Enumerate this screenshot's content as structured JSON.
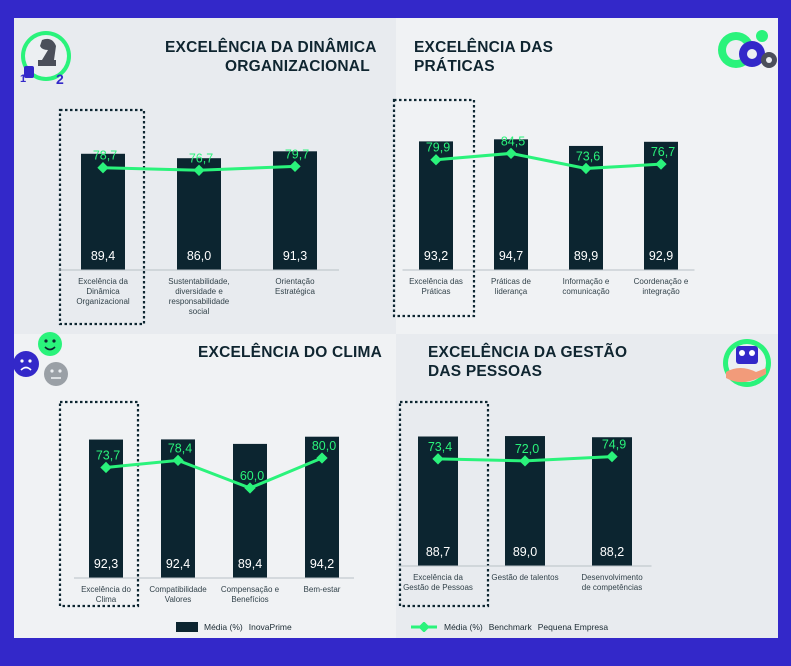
{
  "colors": {
    "frame": "#3328c9",
    "bar": "#0c2530",
    "benchmark": "#2af37b",
    "background": "#eceff2"
  },
  "legend": {
    "bar_label": "Média (%)",
    "bar_name": "InovaPrime",
    "line_label": "Média (%)",
    "line_name": "Benchmark",
    "line_name2": "Pequena Empresa"
  },
  "panels": [
    {
      "title_line1": "EXCELÊNCIA DA DINÂMICA",
      "title_line2": "ORGANIZACIONAL",
      "icon": "chess-knight-icon"
    },
    {
      "title_line1": "EXCELÊNCIA DAS",
      "title_line2": "PRÁTICAS",
      "icon": "gears-icon"
    },
    {
      "title_line1": "EXCELÊNCIA DO CLIMA",
      "title_line2": "",
      "icon": "mood-faces-icon"
    },
    {
      "title_line1": "EXCELÊNCIA DA GESTÃO",
      "title_line2": "DAS PESSOAS",
      "icon": "hand-people-icon"
    }
  ],
  "chart_data": [
    {
      "type": "bar",
      "title": "EXCELÊNCIA DA DINÂMICA ORGANIZACIONAL",
      "categories": [
        [
          "Excelência da",
          "Dinâmica",
          "Organizacional"
        ],
        [
          "Sustentabilidade,",
          "diversidade e",
          "responsabilidade",
          "social"
        ],
        [
          "Orientação",
          "Estratégica"
        ]
      ],
      "series": [
        {
          "name": "InovaPrime",
          "type": "bar",
          "values": [
            89.4,
            86.0,
            91.3
          ],
          "labels": [
            "89,4",
            "86,0",
            "91,3"
          ]
        },
        {
          "name": "Benchmark Pequena Empresa",
          "type": "line",
          "values": [
            78.7,
            76.7,
            79.7
          ],
          "labels": [
            "78,7",
            "76,7",
            "79,7"
          ]
        }
      ],
      "highlight_index": 0
    },
    {
      "type": "bar",
      "title": "EXCELÊNCIA DAS PRÁTICAS",
      "categories": [
        [
          "Excelência das",
          "Práticas"
        ],
        [
          "Práticas de",
          "liderança"
        ],
        [
          "Informação e",
          "comunicação"
        ],
        [
          "Coordenação e",
          "integração"
        ]
      ],
      "series": [
        {
          "name": "InovaPrime",
          "type": "bar",
          "values": [
            93.2,
            94.7,
            89.9,
            92.9
          ],
          "labels": [
            "93,2",
            "94,7",
            "89,9",
            "92,9"
          ]
        },
        {
          "name": "Benchmark Pequena Empresa",
          "type": "line",
          "values": [
            79.9,
            84.5,
            73.6,
            76.7
          ],
          "labels": [
            "79,9",
            "84,5",
            "73,6",
            "76,7"
          ]
        }
      ],
      "highlight_index": 0
    },
    {
      "type": "bar",
      "title": "EXCELÊNCIA DO CLIMA",
      "categories": [
        [
          "Excelência do",
          "Clima"
        ],
        [
          "Compatibilidade",
          "Valores"
        ],
        [
          "Compensação e",
          "Benefícios"
        ],
        [
          "Bem-estar"
        ]
      ],
      "series": [
        {
          "name": "InovaPrime",
          "type": "bar",
          "values": [
            92.3,
            92.4,
            89.4,
            94.2
          ],
          "labels": [
            "92,3",
            "92,4",
            "89,4",
            "94,2"
          ]
        },
        {
          "name": "Benchmark Pequena Empresa",
          "type": "line",
          "values": [
            73.7,
            78.4,
            60.0,
            80.0
          ],
          "labels": [
            "73,7",
            "78,4",
            "60,0",
            "80,0"
          ]
        }
      ],
      "highlight_index": 0
    },
    {
      "type": "bar",
      "title": "EXCELÊNCIA DA GESTÃO DAS PESSOAS",
      "categories": [
        [
          "Excelência da",
          "Gestão de Pessoas"
        ],
        [
          "Gestão de talentos"
        ],
        [
          "Desenvolvimento",
          "de competências"
        ]
      ],
      "series": [
        {
          "name": "InovaPrime",
          "type": "bar",
          "values": [
            88.7,
            89.0,
            88.2
          ],
          "labels": [
            "88,7",
            "89,0",
            "88,2"
          ]
        },
        {
          "name": "Benchmark Pequena Empresa",
          "type": "line",
          "values": [
            73.4,
            72.0,
            74.9
          ],
          "labels": [
            "73,4",
            "72,0",
            "74,9"
          ]
        }
      ],
      "highlight_index": 0
    }
  ]
}
